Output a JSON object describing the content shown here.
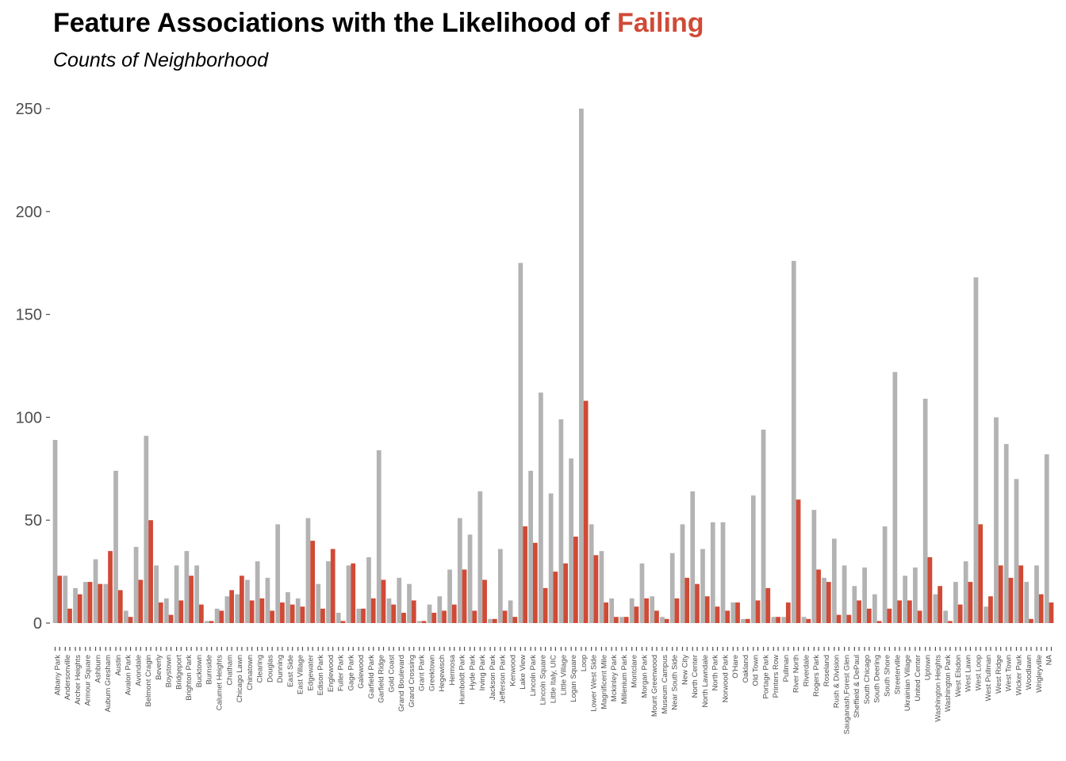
{
  "header": {
    "title_prefix": "Feature Associations with the Likelihood of ",
    "title_highlight": "Failing",
    "subtitle": "Counts of Neighborhood"
  },
  "colors": {
    "pass": "#b3b3b3",
    "fail": "#d04a36",
    "axis_text": "#4d4d4d"
  },
  "chart_data": {
    "type": "bar",
    "title": "Feature Associations with the Likelihood of Failing",
    "subtitle": "Counts of Neighborhood",
    "xlabel": "",
    "ylabel": "",
    "ylim": [
      0,
      250
    ],
    "yticks": [
      0,
      50,
      100,
      150,
      200,
      250
    ],
    "grid": false,
    "legend": "none",
    "categories": [
      "Albany Park",
      "Andersonville",
      "Archer Heights",
      "Armour Square",
      "Ashburn",
      "Auburn Gresham",
      "Austin",
      "Avalon Park",
      "Avondale",
      "Belmont Cragin",
      "Beverly",
      "Boystown",
      "Bridgeport",
      "Brighton Park",
      "Bucktown",
      "Burnside",
      "Calumet Heights",
      "Chatham",
      "Chicago Lawn",
      "Chinatown",
      "Clearing",
      "Douglas",
      "Dunning",
      "East Side",
      "East Village",
      "Edgewater",
      "Edison Park",
      "Englewood",
      "Fuller Park",
      "Gage Park",
      "Galewood",
      "Garfield Park",
      "Garfield Ridge",
      "Gold Coast",
      "Grand Boulevard",
      "Grand Crossing",
      "Grant Park",
      "Greektown",
      "Hegewisch",
      "Hermosa",
      "Humboldt Park",
      "Hyde Park",
      "Irving Park",
      "Jackson Park",
      "Jefferson Park",
      "Kenwood",
      "Lake View",
      "Lincoln Park",
      "Lincoln Square",
      "Little Italy, UIC",
      "Little Village",
      "Logan Square",
      "Loop",
      "Lower West Side",
      "Magnificent Mile",
      "Mckinley Park",
      "Millenium Park",
      "Montclare",
      "Morgan Park",
      "Mount Greenwood",
      "Museum Campus",
      "Near South Side",
      "New City",
      "North Center",
      "North Lawndale",
      "North Park",
      "Norwood Park",
      "O'Hare",
      "Oakland",
      "Old Town",
      "Portage Park",
      "Printers Row",
      "Pullman",
      "River North",
      "Riverdale",
      "Rogers Park",
      "Roseland",
      "Rush & Division",
      "Sauganash,Forest Glen",
      "Sheffield & DePaul",
      "South Chicago",
      "South Deering",
      "South Shore",
      "Streeterville",
      "Ukrainian Village",
      "United Center",
      "Uptown",
      "Washington Heights",
      "Washington Park",
      "West Elsdon",
      "West Lawn",
      "West Loop",
      "West Pullman",
      "West Ridge",
      "West Town",
      "Wicker Park",
      "Woodlawn",
      "Wrigleyville",
      "NA"
    ],
    "series": [
      {
        "values": [
          89,
          23,
          17,
          20,
          31,
          19,
          74,
          6,
          37,
          91,
          28,
          12,
          28,
          35,
          28,
          1,
          7,
          13,
          14,
          21,
          30,
          22,
          48,
          15,
          12,
          51,
          19,
          30,
          5,
          28,
          7,
          32,
          84,
          12,
          22,
          19,
          1,
          9,
          13,
          26,
          51,
          43,
          64,
          2,
          36,
          11,
          175,
          74,
          112,
          63,
          99,
          80,
          250,
          48,
          35,
          12,
          3,
          12,
          29,
          13,
          3,
          34,
          48,
          64,
          36,
          49,
          49,
          10,
          2,
          62,
          94,
          3,
          3,
          176,
          3,
          55,
          22,
          41,
          28,
          18,
          27,
          14,
          47,
          122,
          23,
          27,
          109,
          14,
          6,
          20,
          30,
          168,
          8,
          100,
          87,
          70,
          20,
          28,
          82
        ]
      },
      {
        "values": [
          23,
          7,
          14,
          20,
          19,
          35,
          16,
          3,
          21,
          50,
          10,
          4,
          11,
          23,
          9,
          1,
          6,
          16,
          23,
          11,
          12,
          6,
          10,
          9,
          8,
          40,
          7,
          36,
          1,
          29,
          7,
          12,
          21,
          9,
          5,
          11,
          1,
          5,
          6,
          9,
          26,
          6,
          21,
          2,
          6,
          3,
          47,
          39,
          17,
          25,
          29,
          42,
          108,
          33,
          10,
          3,
          3,
          8,
          12,
          6,
          2,
          12,
          22,
          19,
          13,
          8,
          6,
          10,
          2,
          11,
          17,
          3,
          10,
          60,
          2,
          26,
          20,
          4,
          4,
          11,
          7,
          1,
          7,
          11,
          11,
          6,
          32,
          18,
          1,
          9,
          20,
          48,
          13,
          28,
          22,
          28,
          2,
          14,
          10
        ]
      }
    ]
  }
}
